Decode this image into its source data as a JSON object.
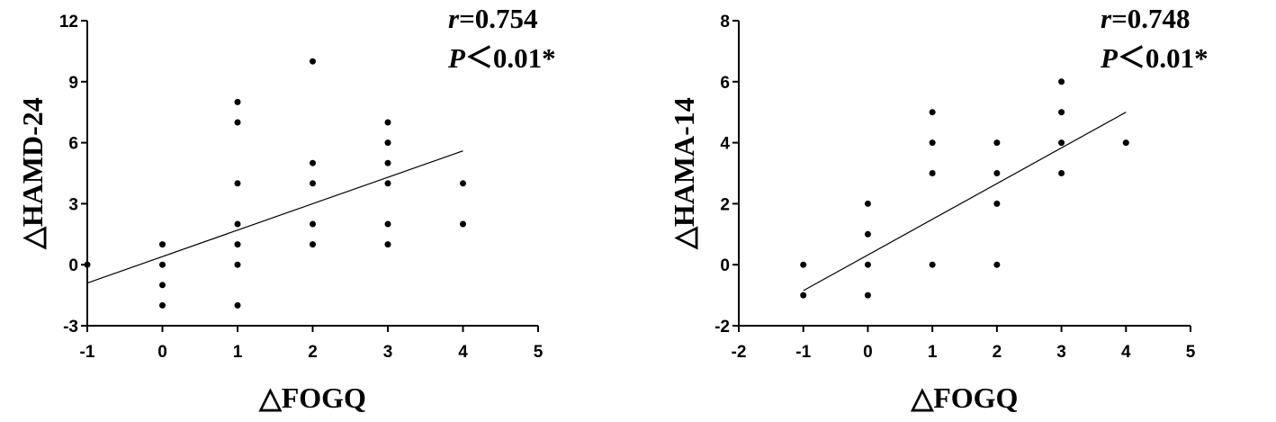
{
  "chart_data": [
    {
      "type": "scatter",
      "x_label": "△FOGQ",
      "y_label": "△HAMD-24",
      "annotations": [
        [
          "r",
          "=0.754"
        ],
        [
          "P",
          "＜0.01*"
        ]
      ],
      "x": [
        -1,
        0,
        0,
        0,
        0,
        1,
        1,
        1,
        1,
        1,
        1,
        1,
        2,
        2,
        2,
        2,
        2,
        3,
        3,
        3,
        3,
        3,
        3,
        4,
        4
      ],
      "y": [
        0,
        1,
        0,
        -1,
        -2,
        8,
        7,
        4,
        2,
        1,
        0,
        -2,
        10,
        5,
        4,
        2,
        1,
        7,
        6,
        5,
        4,
        2,
        1,
        4,
        2
      ],
      "fit_line": {
        "x": [
          -1,
          4
        ],
        "y": [
          -0.9,
          5.6
        ]
      },
      "color": "#000000",
      "xlim": [
        -1,
        5
      ],
      "xticks": [
        -1,
        0,
        1,
        2,
        3,
        4,
        5
      ],
      "ylim": [
        -3,
        12
      ],
      "yticks": [
        -3,
        0,
        3,
        6,
        9,
        12
      ]
    },
    {
      "type": "scatter",
      "x_label": "△FOGQ",
      "y_label": "△HAMA-14",
      "annotations": [
        [
          "r",
          "=0.748"
        ],
        [
          "P",
          "＜0.01*"
        ]
      ],
      "x": [
        -1,
        -1,
        0,
        0,
        0,
        0,
        1,
        1,
        1,
        1,
        2,
        2,
        2,
        2,
        3,
        3,
        3,
        3,
        4
      ],
      "y": [
        0,
        -1,
        2,
        1,
        0,
        -1,
        5,
        4,
        3,
        0,
        4,
        3,
        2,
        0,
        6,
        5,
        4,
        3,
        4
      ],
      "fit_line": {
        "x": [
          -1,
          4
        ],
        "y": [
          -0.85,
          5.0
        ]
      },
      "color": "#000000",
      "xlim": [
        -2,
        5
      ],
      "xticks": [
        -2,
        -1,
        0,
        1,
        2,
        3,
        4,
        5
      ],
      "ylim": [
        -2,
        8
      ],
      "yticks": [
        -2,
        0,
        2,
        4,
        6,
        8
      ]
    }
  ]
}
